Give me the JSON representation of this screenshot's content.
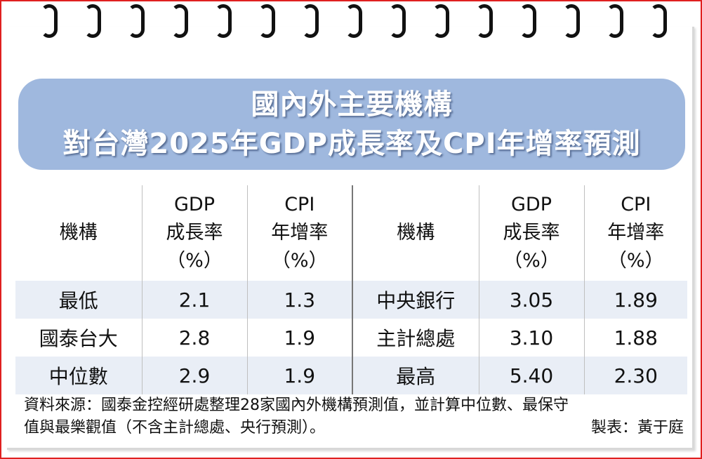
{
  "title": {
    "line1": "國內外主要機構",
    "line2": "對台灣2025年GDP成長率及CPI年增率預測"
  },
  "header": {
    "agency": "機構",
    "gdp": [
      "GDP",
      "成長率",
      "（%）"
    ],
    "cpi": [
      "CPI",
      "年增率",
      "（%）"
    ]
  },
  "rows": [
    {
      "left": {
        "name": "最低",
        "gdp": "2.1",
        "cpi": "1.3"
      },
      "right": {
        "name": "中央銀行",
        "gdp": "3.05",
        "cpi": "1.89"
      }
    },
    {
      "left": {
        "name": "國泰台大",
        "gdp": "2.8",
        "cpi": "1.9"
      },
      "right": {
        "name": "主計總處",
        "gdp": "3.10",
        "cpi": "1.88"
      }
    },
    {
      "left": {
        "name": "中位數",
        "gdp": "2.9",
        "cpi": "1.9"
      },
      "right": {
        "name": "最高",
        "gdp": "5.40",
        "cpi": "2.30"
      }
    }
  ],
  "note": {
    "line1": "資料來源：國泰金控經研處整理28家國內外機構預測值，並計算中位數、最保守",
    "line2": "值與最樂觀值（不含主計總處、央行預測）。",
    "credit": "製表：黃于庭"
  },
  "colors": {
    "title_bg": "#9fb8de",
    "row_stripe": "#e9eef6",
    "border": "#e02020"
  }
}
